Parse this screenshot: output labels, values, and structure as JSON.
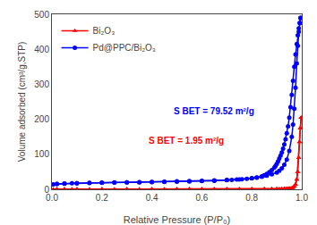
{
  "chart_data": {
    "type": "line",
    "xlabel": "Relative Pressure (P/P₀)",
    "ylabel": "Volume adsorbed (cm³/g,STP)",
    "xlim": [
      0.0,
      1.0
    ],
    "ylim": [
      0,
      500
    ],
    "xticks": [
      {
        "value": 0.0,
        "label": "0.0"
      },
      {
        "value": 0.2,
        "label": "0.2"
      },
      {
        "value": 0.4,
        "label": "0.4"
      },
      {
        "value": 0.6,
        "label": "0.6"
      },
      {
        "value": 0.8,
        "label": "0.8"
      },
      {
        "value": 1.0,
        "label": "1.0"
      }
    ],
    "yticks": [
      0,
      100,
      200,
      300,
      400,
      500
    ],
    "grid": false,
    "legend": "upper left",
    "annotations": [
      {
        "text": "S BET = 79.52 m²/g",
        "x": 0.48,
        "y": 205,
        "color": "#0000FF"
      },
      {
        "text": "S BET = 1.95 m²/g",
        "x": 0.38,
        "y": 120,
        "color": "#FF0000"
      }
    ],
    "series": [
      {
        "name": "Bi₂O₃",
        "color": "#FF0000",
        "marker": "triangle-up",
        "x": [
          0.005,
          0.02,
          0.05,
          0.08,
          0.1,
          0.15,
          0.2,
          0.25,
          0.3,
          0.35,
          0.4,
          0.45,
          0.5,
          0.55,
          0.6,
          0.65,
          0.7,
          0.75,
          0.8,
          0.85,
          0.88,
          0.9,
          0.92,
          0.93,
          0.94,
          0.95,
          0.96,
          0.965,
          0.97,
          0.975,
          0.98,
          0.984,
          0.988,
          0.991,
          0.994,
          0.997
        ],
        "values": [
          0.4,
          0.5,
          0.55,
          0.58,
          0.6,
          0.65,
          0.68,
          0.7,
          0.72,
          0.74,
          0.76,
          0.78,
          0.8,
          0.82,
          0.84,
          0.86,
          0.9,
          0.94,
          1.0,
          1.1,
          1.2,
          1.3,
          1.5,
          1.7,
          2.0,
          2.5,
          3.5,
          5.0,
          8.0,
          14.0,
          28.0,
          50.0,
          90.0,
          135.0,
          175.0,
          205.0
        ]
      },
      {
        "color": "#FF0000",
        "marker": "triangle-up",
        "x": [
          0.997,
          0.994,
          0.991,
          0.988,
          0.984,
          0.98,
          0.975,
          0.97,
          0.965,
          0.96,
          0.955,
          0.95,
          0.945,
          0.94,
          0.935,
          0.93,
          0.92,
          0.91,
          0.9,
          0.88,
          0.85,
          0.8,
          0.75,
          0.7,
          0.65,
          0.6,
          0.55,
          0.5,
          0.4,
          0.3,
          0.2,
          0.1,
          0.05,
          0.02
        ],
        "values": [
          205.0,
          175.0,
          135.0,
          90.0,
          50.0,
          28.0,
          14.0,
          8.0,
          5.0,
          3.5,
          2.8,
          2.3,
          2.0,
          1.8,
          1.6,
          1.5,
          1.4,
          1.3,
          1.2,
          1.1,
          1.0,
          0.95,
          0.92,
          0.9,
          0.87,
          0.85,
          0.83,
          0.81,
          0.78,
          0.75,
          0.7,
          0.62,
          0.57,
          0.52
        ]
      },
      {
        "name": "Pd@PPC/Bi₂O₃",
        "color": "#0000FF",
        "marker": "circle",
        "x": [
          0.005,
          0.02,
          0.05,
          0.08,
          0.1,
          0.15,
          0.2,
          0.25,
          0.3,
          0.35,
          0.4,
          0.45,
          0.5,
          0.55,
          0.6,
          0.65,
          0.7,
          0.75,
          0.8,
          0.82,
          0.84,
          0.86,
          0.88,
          0.9,
          0.91,
          0.92,
          0.93,
          0.94,
          0.95,
          0.96,
          0.965,
          0.97,
          0.975,
          0.98,
          0.984,
          0.988,
          0.992,
          0.995
        ],
        "values": [
          14.0,
          15.0,
          16.0,
          17.0,
          17.5,
          18.0,
          18.5,
          19.0,
          19.5,
          20.0,
          20.5,
          21.0,
          21.5,
          22.5,
          23.5,
          24.5,
          26.0,
          28.0,
          31.0,
          33.0,
          36.0,
          39.0,
          43.0,
          48.0,
          53.0,
          60.0,
          70.0,
          85.0,
          110.0,
          150.0,
          185.0,
          230.0,
          290.0,
          360.0,
          410.0,
          450.0,
          475.0,
          490.0
        ]
      },
      {
        "color": "#0000FF",
        "marker": "circle",
        "x": [
          0.995,
          0.992,
          0.988,
          0.984,
          0.98,
          0.975,
          0.97,
          0.965,
          0.96,
          0.955,
          0.95,
          0.945,
          0.94,
          0.935,
          0.93,
          0.925,
          0.92,
          0.915,
          0.91,
          0.905,
          0.9,
          0.895,
          0.89,
          0.88,
          0.87,
          0.86,
          0.85,
          0.84,
          0.82,
          0.8,
          0.78,
          0.76,
          0.74,
          0.72,
          0.7,
          0.65,
          0.6,
          0.55,
          0.5,
          0.45,
          0.4,
          0.35,
          0.3,
          0.25,
          0.2,
          0.15,
          0.1,
          0.05,
          0.02
        ],
        "values": [
          490.0,
          475.0,
          460.0,
          440.0,
          415.0,
          385.0,
          350.0,
          310.0,
          270.0,
          235.0,
          205.0,
          180.0,
          160.0,
          143.0,
          128.0,
          116.0,
          105.0,
          96.0,
          88.0,
          80.0,
          73.0,
          67.0,
          62.0,
          55.0,
          49.0,
          44.0,
          40.0,
          37.0,
          34.0,
          32.0,
          30.0,
          29.0,
          28.0,
          27.0,
          26.5,
          25.5,
          24.5,
          23.5,
          23.0,
          22.0,
          21.0,
          20.5,
          20.0,
          19.5,
          19.0,
          18.5,
          17.5,
          16.5,
          15.5
        ]
      }
    ]
  }
}
